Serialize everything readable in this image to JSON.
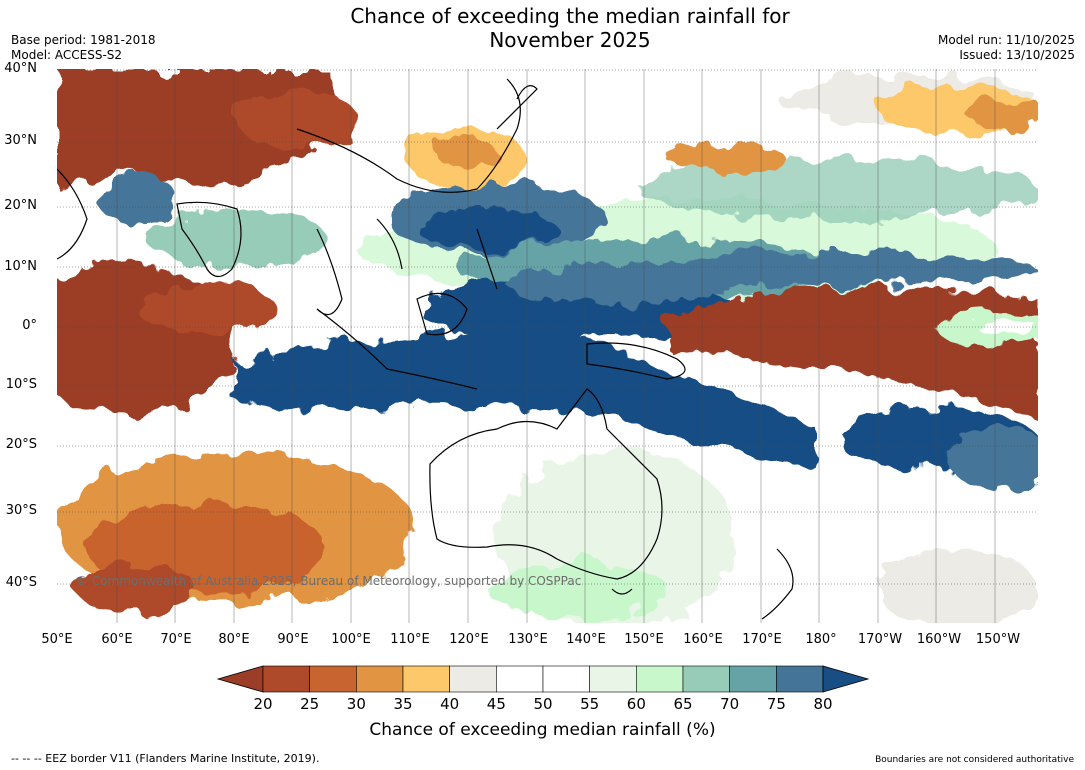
{
  "header": {
    "title_line1": "Chance of exceeding the median rainfall for",
    "title_line2": "November 2025",
    "base_period": "Base period: 1981-2018",
    "model": "Model: ACCESS-S2",
    "model_run": "Model run: 11/10/2025",
    "issued": "Issued: 13/10/2025"
  },
  "map": {
    "lat_labels": [
      "40°N",
      "30°N",
      "20°N",
      "10°N",
      "0°",
      "10°S",
      "20°S",
      "30°S",
      "40°S"
    ],
    "lon_labels": [
      "50°E",
      "60°E",
      "70°E",
      "80°E",
      "90°E",
      "100°E",
      "110°E",
      "120°E",
      "130°E",
      "140°E",
      "150°E",
      "160°E",
      "170°E",
      "180°",
      "170°W",
      "160°W",
      "150°W"
    ],
    "copyright": "© Commonwealth of Australia 2025, Bureau of Meteorology, supported by COSPPac"
  },
  "colorbar": {
    "ticks": [
      "20",
      "25",
      "30",
      "35",
      "40",
      "45",
      "50",
      "55",
      "60",
      "65",
      "70",
      "75",
      "80"
    ],
    "label": "Chance of exceeding median rainfall (%)",
    "colors": [
      "#9c3d27",
      "#ae4a2a",
      "#c8642f",
      "#e19442",
      "#fcc86a",
      "#ecebe6",
      "#ffffff",
      "#ffffff",
      "#e8f5e7",
      "#c9f7cc",
      "#97cdb8",
      "#66a3a7",
      "#447598",
      "#184e84"
    ]
  },
  "footer": {
    "eez_note": "--  --  -- EEZ border V11 (Flanders Marine Institute, 2019).",
    "boundaries_note": "Boundaries are not considered authoritative"
  }
}
